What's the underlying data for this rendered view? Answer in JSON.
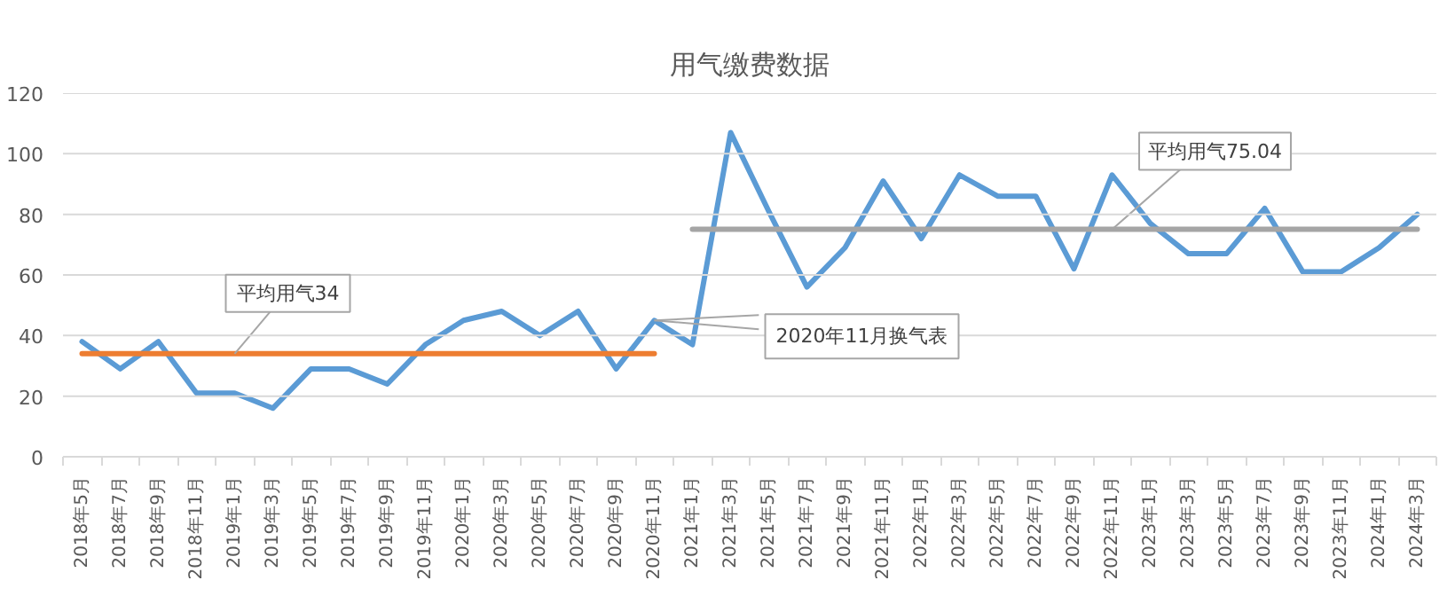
{
  "chart_data": {
    "type": "line",
    "title": "用气缴费数据",
    "categories": [
      "2018年5月",
      "2018年7月",
      "2018年9月",
      "2018年11月",
      "2019年1月",
      "2019年3月",
      "2019年5月",
      "2019年7月",
      "2019年9月",
      "2019年11月",
      "2020年1月",
      "2020年3月",
      "2020年5月",
      "2020年7月",
      "2020年9月",
      "2020年11月",
      "2021年1月",
      "2021年3月",
      "2021年5月",
      "2021年7月",
      "2021年9月",
      "2021年11月",
      "2022年1月",
      "2022年3月",
      "2022年5月",
      "2022年7月",
      "2022年9月",
      "2022年11月",
      "2023年1月",
      "2023年3月",
      "2023年5月",
      "2023年7月",
      "2023年9月",
      "2023年11月",
      "2024年1月",
      "2024年3月"
    ],
    "series": [
      {
        "color": "#5b9bd5",
        "values": [
          38,
          29,
          38,
          21,
          21,
          16,
          29,
          29,
          24,
          37,
          45,
          48,
          40,
          48,
          29,
          45,
          37,
          107,
          81,
          56,
          69,
          91,
          72,
          93,
          86,
          86,
          62,
          93,
          77,
          67,
          67,
          82,
          61,
          61,
          69,
          80
        ]
      },
      {
        "color": "#ed7d31",
        "values": [
          34,
          34,
          34,
          34,
          34,
          34,
          34,
          34,
          34,
          34,
          34,
          34,
          34,
          34,
          34,
          34,
          null,
          null,
          null,
          null,
          null,
          null,
          null,
          null,
          null,
          null,
          null,
          null,
          null,
          null,
          null,
          null,
          null,
          null,
          null,
          null
        ]
      },
      {
        "color": "#a5a5a5",
        "values": [
          null,
          null,
          null,
          null,
          null,
          null,
          null,
          null,
          null,
          null,
          null,
          null,
          null,
          null,
          null,
          null,
          75.04,
          75.04,
          75.04,
          75.04,
          75.04,
          75.04,
          75.04,
          75.04,
          75.04,
          75.04,
          75.04,
          75.04,
          75.04,
          75.04,
          75.04,
          75.04,
          75.04,
          75.04,
          75.04,
          75.04
        ]
      }
    ],
    "ylim": [
      0,
      120
    ],
    "yticks": [
      0,
      20,
      40,
      60,
      80,
      100,
      120
    ],
    "grid": "y",
    "line_style": "solid",
    "annotations": [
      {
        "text": "平均用气34",
        "x": "2019年1月",
        "y": 34
      },
      {
        "text": "2020年11月换气表",
        "x": "2020年11月",
        "y": 45
      },
      {
        "text": "平均用气75.04",
        "x": "2022年11月",
        "y": 75.04
      }
    ]
  }
}
